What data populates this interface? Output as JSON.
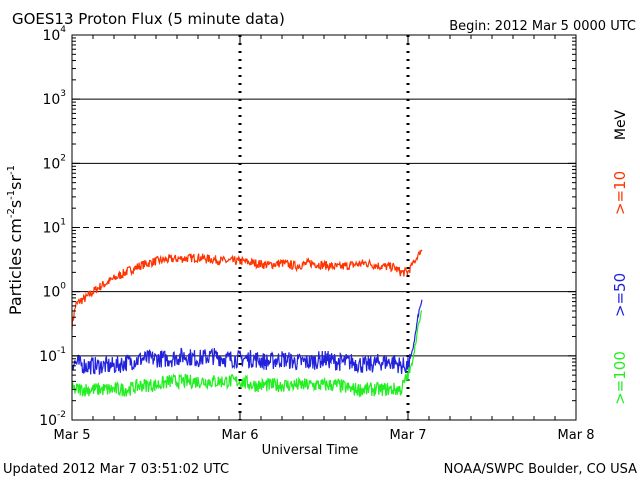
{
  "title": "GOES13 Proton Flux (5 minute data)",
  "begin": "Begin: 2012 Mar 5 0000 UTC",
  "updated": "Updated 2012 Mar  7 03:51:02 UTC",
  "credit": "NOAA/SWPC Boulder, CO USA",
  "colors": {
    "ge10": "#ff3300",
    "ge50": "#2222dd",
    "ge100": "#22ee22",
    "axis": "#000000"
  },
  "chart_data": {
    "type": "line",
    "title": "GOES13 Proton Flux (5 minute data)",
    "xlabel": "Universal Time",
    "ylabel": "Particles cm⁻²s⁻¹sr⁻¹",
    "yscale": "log",
    "ylim": [
      0.01,
      10000
    ],
    "xlim": [
      0,
      72
    ],
    "x_unit": "hours since 2012 Mar 5 0000 UTC",
    "x_ticks": [
      {
        "value": 0,
        "label": "Mar 5"
      },
      {
        "value": 24,
        "label": "Mar 6"
      },
      {
        "value": 48,
        "label": "Mar 7"
      },
      {
        "value": 72,
        "label": "Mar 8"
      }
    ],
    "y_ticks": [
      {
        "value": 0.01,
        "base": "10",
        "exp": "-2"
      },
      {
        "value": 0.1,
        "base": "10",
        "exp": "-1"
      },
      {
        "value": 1,
        "base": "10",
        "exp": "0"
      },
      {
        "value": 10,
        "base": "10",
        "exp": "1"
      },
      {
        "value": 100,
        "base": "10",
        "exp": "2"
      },
      {
        "value": 1000,
        "base": "10",
        "exp": "3"
      },
      {
        "value": 10000,
        "base": "10",
        "exp": "4"
      }
    ],
    "threshold": {
      "value": 10,
      "style": "dashed"
    },
    "grid": true,
    "legend_title": "MeV",
    "series": [
      {
        "name": ">=10",
        "color": "#ff3300",
        "x": [
          0,
          0.5,
          1,
          2,
          3,
          4,
          6,
          8,
          10,
          12,
          14,
          16,
          18,
          20,
          22,
          24,
          26,
          28,
          30,
          32,
          34,
          36,
          38,
          40,
          42,
          44,
          46,
          47,
          48,
          48.5,
          49,
          49.5,
          50
        ],
        "y": [
          0.3,
          0.6,
          0.7,
          0.8,
          1.0,
          1.2,
          1.6,
          2.1,
          2.6,
          3.0,
          3.2,
          3.3,
          3.4,
          3.2,
          3.0,
          3.0,
          2.8,
          2.6,
          2.8,
          2.5,
          2.8,
          2.6,
          2.4,
          2.6,
          2.8,
          2.5,
          2.4,
          2.0,
          2.0,
          2.6,
          3.0,
          3.8,
          4.5
        ]
      },
      {
        "name": ">=50",
        "color": "#2222dd",
        "x": [
          0,
          2,
          4,
          6,
          8,
          10,
          12,
          14,
          16,
          18,
          20,
          22,
          24,
          26,
          28,
          30,
          32,
          34,
          36,
          38,
          40,
          42,
          44,
          46,
          47,
          48,
          48.5,
          49,
          49.5,
          50
        ],
        "y": [
          0.08,
          0.07,
          0.07,
          0.07,
          0.08,
          0.09,
          0.09,
          0.09,
          0.1,
          0.09,
          0.1,
          0.09,
          0.09,
          0.09,
          0.08,
          0.09,
          0.08,
          0.08,
          0.09,
          0.08,
          0.08,
          0.07,
          0.08,
          0.08,
          0.07,
          0.07,
          0.1,
          0.2,
          0.45,
          0.75
        ]
      },
      {
        "name": ">=100",
        "color": "#22ee22",
        "x": [
          0,
          2,
          4,
          6,
          8,
          10,
          12,
          14,
          16,
          18,
          20,
          22,
          24,
          26,
          28,
          30,
          32,
          34,
          36,
          38,
          40,
          42,
          44,
          46,
          47,
          48,
          48.5,
          49,
          49.5,
          50
        ],
        "y": [
          0.03,
          0.03,
          0.03,
          0.03,
          0.03,
          0.035,
          0.035,
          0.04,
          0.04,
          0.04,
          0.04,
          0.04,
          0.04,
          0.035,
          0.035,
          0.035,
          0.035,
          0.035,
          0.035,
          0.035,
          0.03,
          0.03,
          0.03,
          0.03,
          0.03,
          0.05,
          0.07,
          0.14,
          0.3,
          0.5
        ]
      }
    ]
  }
}
